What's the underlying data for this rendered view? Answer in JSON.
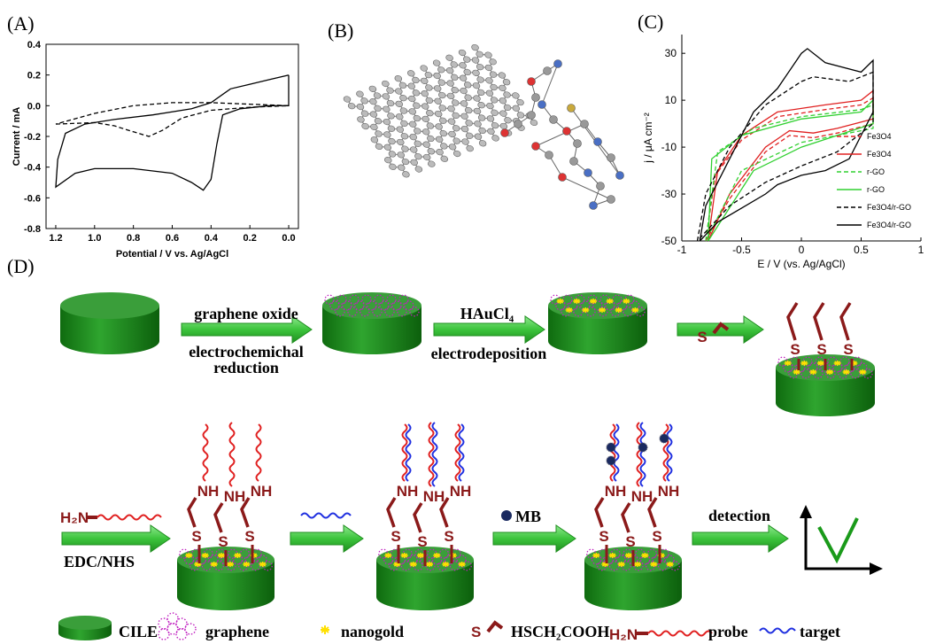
{
  "panel_labels": [
    "(A)",
    "(B)",
    "(C)",
    "(D)"
  ],
  "chart_data": [
    {
      "type": "line",
      "xlabel": "Potential / V vs. Ag/AgCl",
      "ylabel": "Current / mA",
      "xlim": [
        1.25,
        -0.05
      ],
      "ylim": [
        -0.8,
        0.4
      ],
      "xticks": [
        1.2,
        {
          "value": 1,
          "label": "1.0"
        },
        0.8,
        0.6,
        0.4,
        0.2,
        {
          "value": 0,
          "label": "0.0"
        }
      ],
      "yticks": [
        0.4,
        0.2,
        {
          "value": 0,
          "label": "0.0"
        },
        -0.2,
        -0.4,
        -0.6,
        -0.8
      ],
      "axes_box": true,
      "series": [
        {
          "color": "#000000",
          "dash": false,
          "x": [
            0,
            0.1,
            0.2,
            0.3,
            0.4,
            0.5,
            0.7,
            0.9,
            1.05,
            1.15,
            1.19,
            1.2,
            1.1,
            1.0,
            0.8,
            0.6,
            0.5,
            0.44,
            0.4,
            0.37,
            0.34,
            0.25,
            0.1,
            0,
            0
          ],
          "values": [
            0.2,
            0.17,
            0.14,
            0.11,
            0.02,
            -0.02,
            -0.06,
            -0.09,
            -0.12,
            -0.18,
            -0.35,
            -0.53,
            -0.44,
            -0.41,
            -0.41,
            -0.44,
            -0.5,
            -0.55,
            -0.48,
            -0.25,
            -0.06,
            -0.02,
            0,
            0,
            0.2
          ]
        },
        {
          "color": "#000000",
          "dash": true,
          "x": [
            1.2,
            1.0,
            0.9,
            0.8,
            0.72,
            0.65,
            0.55,
            0.4,
            0.2,
            0,
            0.2,
            0.4,
            0.6,
            0.8,
            1.0,
            1.2
          ],
          "values": [
            -0.12,
            -0.11,
            -0.13,
            -0.17,
            -0.2,
            -0.16,
            -0.08,
            -0.03,
            -0.01,
            0,
            0.01,
            0.02,
            0.02,
            0,
            -0.05,
            -0.12
          ]
        }
      ]
    },
    {
      "type": "line",
      "xlabel": "E / V (vs. Ag/AgCl)",
      "ylabel": "j / μA cm⁻²",
      "xlim": [
        -1,
        1
      ],
      "ylim": [
        -50,
        38
      ],
      "xticks": [
        -1,
        -0.5,
        0,
        0.5,
        1
      ],
      "yticks": [
        30,
        10,
        -10,
        -30,
        -50
      ],
      "axes_box": false,
      "legend": "lower right",
      "series": [
        {
          "name": "Fe3O4",
          "color": "#e02020",
          "dash": true,
          "x": [
            -0.8,
            -0.72,
            -0.5,
            -0.2,
            0.2,
            0.5,
            0.6,
            0.6,
            0.3,
            0.1,
            -0.1,
            -0.3,
            -0.6,
            -0.8
          ],
          "values": [
            -50,
            -22,
            -7,
            3,
            6,
            8,
            11,
            0,
            -4,
            -6,
            -5,
            -12,
            -32,
            -50
          ]
        },
        {
          "name": "Fe3O4",
          "color": "#e02020",
          "dash": false,
          "x": [
            -0.78,
            -0.7,
            -0.5,
            -0.2,
            0.2,
            0.5,
            0.6,
            0.6,
            0.3,
            0.1,
            -0.1,
            -0.3,
            -0.6,
            -0.78
          ],
          "values": [
            -50,
            -20,
            -5,
            5,
            8,
            10,
            14,
            2,
            -2,
            -4,
            -3,
            -10,
            -30,
            -50
          ]
        },
        {
          "name": "r-GO",
          "color": "#30d030",
          "dash": true,
          "x": [
            -0.8,
            -0.7,
            -0.4,
            0,
            0.5,
            0.6,
            0.6,
            0,
            -0.5,
            -0.8
          ],
          "values": [
            -50,
            -12,
            -2,
            3,
            6,
            8,
            -2,
            -8,
            -20,
            -50
          ]
        },
        {
          "name": "r-GO",
          "color": "#30d030",
          "dash": false,
          "x": [
            -0.78,
            -0.75,
            -0.5,
            0,
            0.5,
            0.6,
            0.6,
            0.3,
            0,
            -0.4,
            -0.78
          ],
          "values": [
            -50,
            -15,
            -5,
            2,
            5,
            10,
            0,
            -5,
            -10,
            -20,
            -50
          ]
        },
        {
          "name": "Fe3O4/r-GO",
          "color": "#000000",
          "dash": true,
          "x": [
            -0.87,
            -0.8,
            -0.6,
            -0.3,
            0,
            0.1,
            0.4,
            0.6,
            0.6,
            0.3,
            0,
            -0.3,
            -0.6,
            -0.87
          ],
          "values": [
            -50,
            -30,
            -10,
            8,
            18,
            20,
            18,
            22,
            0,
            -12,
            -18,
            -25,
            -35,
            -50
          ]
        },
        {
          "name": "Fe3O4/r-GO",
          "color": "#000000",
          "dash": false,
          "x": [
            -0.85,
            -0.8,
            -0.6,
            -0.4,
            -0.2,
            0,
            0.05,
            0.2,
            0.5,
            0.6,
            0.6,
            0.4,
            0.2,
            0,
            -0.2,
            -0.3,
            -0.5,
            -0.7,
            -0.85
          ],
          "values": [
            -50,
            -35,
            -15,
            5,
            15,
            30,
            32,
            26,
            22,
            27,
            5,
            -15,
            -20,
            -22,
            -26,
            -30,
            -36,
            -42,
            -50
          ]
        }
      ]
    }
  ],
  "scheme": {
    "graphene_oxide": "graphene oxide",
    "reduction_1": "electrochemichal",
    "reduction_2": "reduction",
    "haucl4": "HAuCl₄",
    "electrodeposition": "electrodeposition",
    "amine": "H₂N",
    "edc_nhs": "EDC/NHS",
    "mb": "MB",
    "detection": "detection",
    "linker_s": "S",
    "amide_nh": "NH",
    "legend": [
      "CILE",
      "graphene",
      "nanogold",
      "HSCH₂COOH",
      "probe",
      "target"
    ]
  }
}
